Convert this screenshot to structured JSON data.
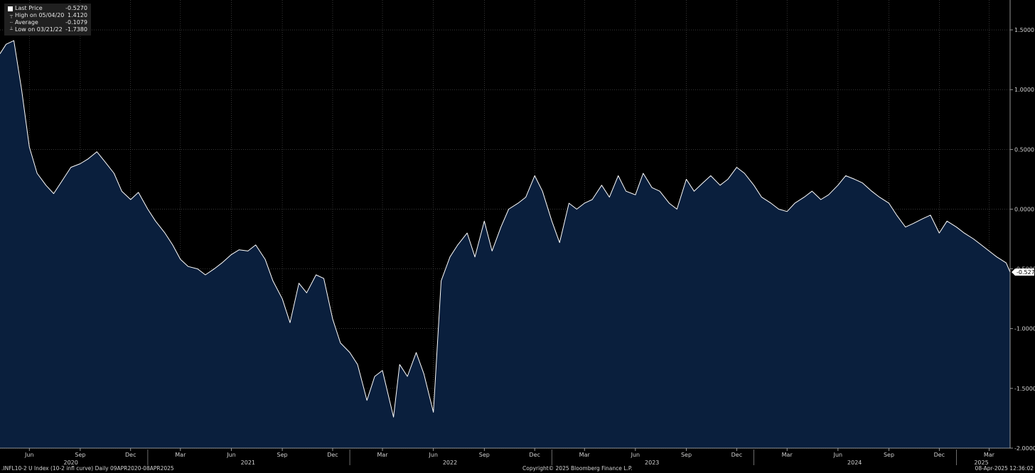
{
  "legend": {
    "last_label": "Last Price",
    "last_value": "-0.5270",
    "high_label": "High on 05/04/20",
    "high_value": "1.4120",
    "avg_label": "Average",
    "avg_value": "-0.1079",
    "low_label": "Low on 03/21/22",
    "low_value": "-1.7380"
  },
  "footer": {
    "ticker": ".INFL10-2 U Index (10-2 infl curve)  Daily 09APR2020-08APR2025",
    "copyright": "Copyright© 2025 Bloomberg Finance L.P.",
    "timestamp": "08-Apr-2025 12:36:02"
  },
  "colors": {
    "background": "#000000",
    "area": "#0a1f3d",
    "line": "#ffffff",
    "grid": "#5a5a5a"
  },
  "chart_data": {
    "type": "area",
    "title": "",
    "xlabel": "",
    "ylabel": "",
    "xlim": [
      "2020-04-09",
      "2025-04-08"
    ],
    "ylim": [
      -2.0,
      1.75
    ],
    "grid": true,
    "legend_position": "top-left",
    "last_value_label": "-0.5270",
    "y_ticks": [
      1.5,
      1.0,
      0.5,
      0.0,
      -0.5,
      -1.0,
      -1.5,
      -2.0
    ],
    "y_tick_labels": [
      "1.5000",
      "1.0000",
      "0.5000",
      "0.0000",
      "-0.5000",
      "-1.0000",
      "-1.5000",
      "-2.0000"
    ],
    "x_month_ticks": [
      {
        "label": "Jun",
        "date": "2020-06-01"
      },
      {
        "label": "Sep",
        "date": "2020-09-01"
      },
      {
        "label": "Dec",
        "date": "2020-12-01"
      },
      {
        "label": "Mar",
        "date": "2021-03-01"
      },
      {
        "label": "Jun",
        "date": "2021-06-01"
      },
      {
        "label": "Sep",
        "date": "2021-09-01"
      },
      {
        "label": "Dec",
        "date": "2021-12-01"
      },
      {
        "label": "Mar",
        "date": "2022-03-01"
      },
      {
        "label": "Jun",
        "date": "2022-06-01"
      },
      {
        "label": "Sep",
        "date": "2022-09-01"
      },
      {
        "label": "Dec",
        "date": "2022-12-01"
      },
      {
        "label": "Mar",
        "date": "2023-03-01"
      },
      {
        "label": "Jun",
        "date": "2023-06-01"
      },
      {
        "label": "Sep",
        "date": "2023-09-01"
      },
      {
        "label": "Dec",
        "date": "2023-12-01"
      },
      {
        "label": "Mar",
        "date": "2024-03-01"
      },
      {
        "label": "Jun",
        "date": "2024-06-01"
      },
      {
        "label": "Sep",
        "date": "2024-09-01"
      },
      {
        "label": "Dec",
        "date": "2024-12-01"
      },
      {
        "label": "Mar",
        "date": "2025-03-01"
      }
    ],
    "x_year_labels": [
      {
        "label": "2020",
        "date": "2020-08-15"
      },
      {
        "label": "2021",
        "date": "2021-07-01"
      },
      {
        "label": "2022",
        "date": "2022-07-01"
      },
      {
        "label": "2023",
        "date": "2023-07-01"
      },
      {
        "label": "2024",
        "date": "2024-07-01"
      },
      {
        "label": "2025",
        "date": "2025-02-15"
      }
    ],
    "x_year_boundaries": [
      "2021-01-01",
      "2022-01-01",
      "2023-01-01",
      "2024-01-01",
      "2025-01-01"
    ],
    "series": [
      {
        "x": [
          "2020-04-09",
          "2020-04-20",
          "2020-05-04",
          "2020-05-18",
          "2020-06-01",
          "2020-06-15",
          "2020-07-01",
          "2020-07-15",
          "2020-08-01",
          "2020-08-15",
          "2020-09-01",
          "2020-09-15",
          "2020-10-01",
          "2020-10-15",
          "2020-11-01",
          "2020-11-15",
          "2020-12-01",
          "2020-12-15",
          "2021-01-01",
          "2021-01-15",
          "2021-02-01",
          "2021-02-15",
          "2021-03-01",
          "2021-03-15",
          "2021-04-01",
          "2021-04-15",
          "2021-05-01",
          "2021-05-15",
          "2021-06-01",
          "2021-06-15",
          "2021-07-01",
          "2021-07-15",
          "2021-08-01",
          "2021-08-15",
          "2021-09-01",
          "2021-09-15",
          "2021-10-01",
          "2021-10-15",
          "2021-11-01",
          "2021-11-15",
          "2021-12-01",
          "2021-12-15",
          "2022-01-01",
          "2022-01-15",
          "2022-02-01",
          "2022-02-15",
          "2022-03-01",
          "2022-03-21",
          "2022-04-01",
          "2022-04-15",
          "2022-05-01",
          "2022-05-15",
          "2022-06-01",
          "2022-06-15",
          "2022-07-01",
          "2022-07-15",
          "2022-08-01",
          "2022-08-15",
          "2022-09-01",
          "2022-09-15",
          "2022-10-01",
          "2022-10-15",
          "2022-11-01",
          "2022-11-15",
          "2022-12-01",
          "2022-12-15",
          "2023-01-01",
          "2023-01-15",
          "2023-02-01",
          "2023-02-15",
          "2023-03-01",
          "2023-03-15",
          "2023-04-01",
          "2023-04-15",
          "2023-05-01",
          "2023-05-15",
          "2023-06-01",
          "2023-06-15",
          "2023-07-01",
          "2023-07-15",
          "2023-08-01",
          "2023-08-15",
          "2023-09-01",
          "2023-09-15",
          "2023-10-01",
          "2023-10-15",
          "2023-11-01",
          "2023-11-15",
          "2023-12-01",
          "2023-12-15",
          "2024-01-01",
          "2024-01-15",
          "2024-02-01",
          "2024-02-15",
          "2024-03-01",
          "2024-03-15",
          "2024-04-01",
          "2024-04-15",
          "2024-05-01",
          "2024-05-15",
          "2024-06-01",
          "2024-06-15",
          "2024-07-01",
          "2024-07-15",
          "2024-08-01",
          "2024-08-15",
          "2024-09-01",
          "2024-09-15",
          "2024-10-01",
          "2024-10-15",
          "2024-11-01",
          "2024-11-15",
          "2024-12-01",
          "2024-12-15",
          "2025-01-01",
          "2025-01-15",
          "2025-02-01",
          "2025-02-15",
          "2025-03-01",
          "2025-03-15",
          "2025-04-01",
          "2025-04-08"
        ],
        "values": [
          1.3,
          1.38,
          1.41,
          1.0,
          0.52,
          0.3,
          0.2,
          0.13,
          0.25,
          0.35,
          0.38,
          0.42,
          0.48,
          0.4,
          0.3,
          0.15,
          0.08,
          0.14,
          0.0,
          -0.1,
          -0.2,
          -0.3,
          -0.42,
          -0.48,
          -0.5,
          -0.55,
          -0.5,
          -0.45,
          -0.38,
          -0.34,
          -0.35,
          -0.3,
          -0.42,
          -0.6,
          -0.75,
          -0.95,
          -0.62,
          -0.7,
          -0.55,
          -0.58,
          -0.92,
          -1.12,
          -1.2,
          -1.3,
          -1.6,
          -1.4,
          -1.35,
          -1.74,
          -1.3,
          -1.4,
          -1.2,
          -1.38,
          -1.7,
          -0.6,
          -0.4,
          -0.3,
          -0.2,
          -0.4,
          -0.1,
          -0.35,
          -0.15,
          0.0,
          0.05,
          0.1,
          0.28,
          0.15,
          -0.1,
          -0.28,
          0.05,
          0.0,
          0.05,
          0.08,
          0.2,
          0.1,
          0.28,
          0.15,
          0.12,
          0.3,
          0.18,
          0.15,
          0.05,
          0.0,
          0.25,
          0.15,
          0.22,
          0.28,
          0.2,
          0.25,
          0.35,
          0.3,
          0.2,
          0.1,
          0.05,
          0.0,
          -0.02,
          0.05,
          0.1,
          0.15,
          0.08,
          0.12,
          0.2,
          0.28,
          0.25,
          0.22,
          0.15,
          0.1,
          0.05,
          -0.05,
          -0.15,
          -0.12,
          -0.08,
          -0.05,
          -0.2,
          -0.1,
          -0.15,
          -0.2,
          -0.25,
          -0.3,
          -0.35,
          -0.4,
          -0.45,
          -0.527
        ]
      }
    ]
  }
}
